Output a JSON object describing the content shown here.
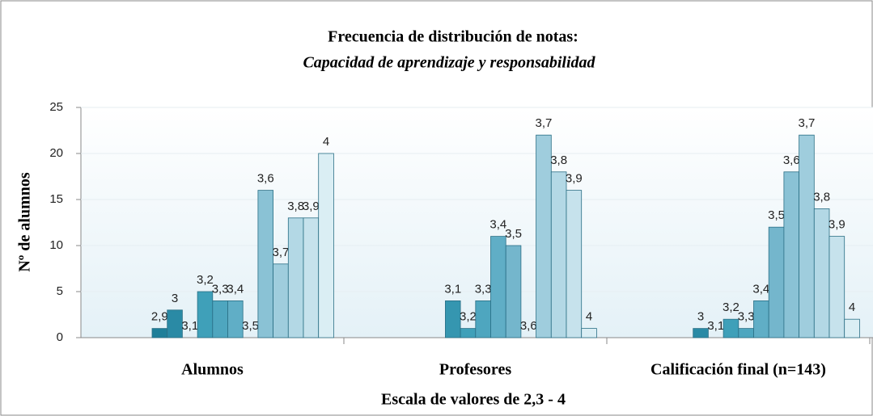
{
  "chart_data": {
    "type": "bar",
    "title": "Frecuencia de distribución de notas:",
    "subtitle": "Capacidad de aprendizaje y responsabilidad",
    "xlabel": "Escala de valores de 2,3 - 4",
    "ylabel": "Nº de alumnos",
    "categories": [
      "Alumnos",
      "Profesores",
      "Calificación final (n=143)"
    ],
    "ylim": [
      0,
      25
    ],
    "yticks": [
      0,
      5,
      10,
      15,
      20,
      25
    ],
    "series": [
      {
        "name": "2,9",
        "color": "#1f7f99",
        "values": [
          1,
          null,
          null
        ]
      },
      {
        "name": "3",
        "color": "#2a8aa5",
        "values": [
          3,
          null,
          1
        ]
      },
      {
        "name": "3,1",
        "color": "#3596b0",
        "values": [
          0,
          4,
          0
        ]
      },
      {
        "name": "3,2",
        "color": "#3fa0b9",
        "values": [
          5,
          1,
          2
        ]
      },
      {
        "name": "3,3",
        "color": "#4ea6bf",
        "values": [
          4,
          4,
          1
        ]
      },
      {
        "name": "3,4",
        "color": "#60aec6",
        "values": [
          4,
          11,
          4
        ]
      },
      {
        "name": "3,5",
        "color": "#74b6cc",
        "values": [
          0,
          10,
          12
        ]
      },
      {
        "name": "3,6",
        "color": "#8ac2d5",
        "values": [
          16,
          0,
          18
        ]
      },
      {
        "name": "3,7",
        "color": "#9fcddd",
        "values": [
          8,
          22,
          22
        ]
      },
      {
        "name": "3,8",
        "color": "#b3d8e5",
        "values": [
          13,
          18,
          14
        ]
      },
      {
        "name": "3,9",
        "color": "#c6e2ec",
        "values": [
          13,
          16,
          11
        ]
      },
      {
        "name": "4",
        "color": "#daeef4",
        "values": [
          20,
          1,
          2
        ]
      }
    ]
  }
}
